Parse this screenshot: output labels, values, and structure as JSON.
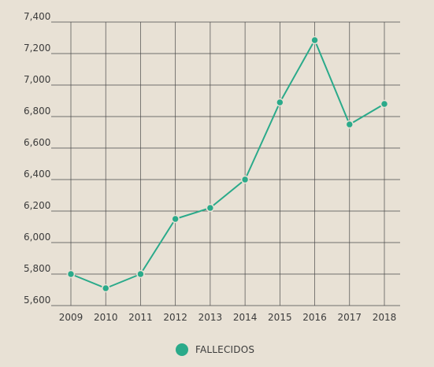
{
  "chart_data": {
    "type": "line",
    "x": [
      "2009",
      "2010",
      "2011",
      "2012",
      "2013",
      "2014",
      "2015",
      "2016",
      "2017",
      "2018"
    ],
    "series": [
      {
        "name": "FALLECIDOS",
        "color": "#2aaa8a",
        "values": [
          5800,
          5710,
          5800,
          6150,
          6220,
          6400,
          6890,
          7285,
          6750,
          6880
        ]
      }
    ],
    "ylim": [
      5600,
      7400
    ],
    "yticks": [
      5600,
      5800,
      6000,
      6200,
      6400,
      6600,
      6800,
      7000,
      7200,
      7400
    ],
    "ytick_labels": [
      "5,600",
      "5,800",
      "6,000",
      "6,200",
      "6,400",
      "6,600",
      "6,800",
      "7,000",
      "7,200",
      "7,400"
    ],
    "grid": true,
    "legend_position": "bottom-center",
    "title": "",
    "xlabel": "",
    "ylabel": ""
  }
}
